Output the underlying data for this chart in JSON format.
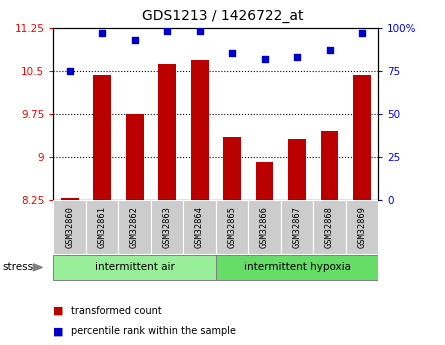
{
  "title": "GDS1213 / 1426722_at",
  "samples": [
    "GSM32860",
    "GSM32861",
    "GSM32862",
    "GSM32863",
    "GSM32864",
    "GSM32865",
    "GSM32866",
    "GSM32867",
    "GSM32868",
    "GSM32869"
  ],
  "bar_values": [
    8.28,
    10.42,
    9.75,
    10.62,
    10.68,
    9.35,
    8.92,
    9.32,
    9.45,
    10.42
  ],
  "dot_values": [
    75,
    97,
    93,
    98,
    98,
    85,
    82,
    83,
    87,
    97
  ],
  "ylim_left": [
    8.25,
    11.25
  ],
  "ylim_right": [
    0,
    100
  ],
  "yticks_left": [
    8.25,
    9.0,
    9.75,
    10.5,
    11.25
  ],
  "yticks_right": [
    0,
    25,
    50,
    75,
    100
  ],
  "ytick_labels_right": [
    "0",
    "25",
    "50",
    "75",
    "100%"
  ],
  "ytick_labels_left": [
    "8.25",
    "9",
    "9.75",
    "10.5",
    "11.25"
  ],
  "bar_color": "#BB0000",
  "dot_color": "#0000CC",
  "base_value": 8.25,
  "group1_label": "intermittent air",
  "group2_label": "intermittent hypoxia",
  "stress_label": "stress",
  "legend_bar_label": "transformed count",
  "legend_dot_label": "percentile rank within the sample",
  "bg_color": "#ffffff",
  "tick_bg_color": "#cccccc",
  "group_bg_color_1": "#99ee99",
  "group_bg_color_2": "#66dd66",
  "grid_yticks": [
    9.0,
    9.75,
    10.5
  ]
}
